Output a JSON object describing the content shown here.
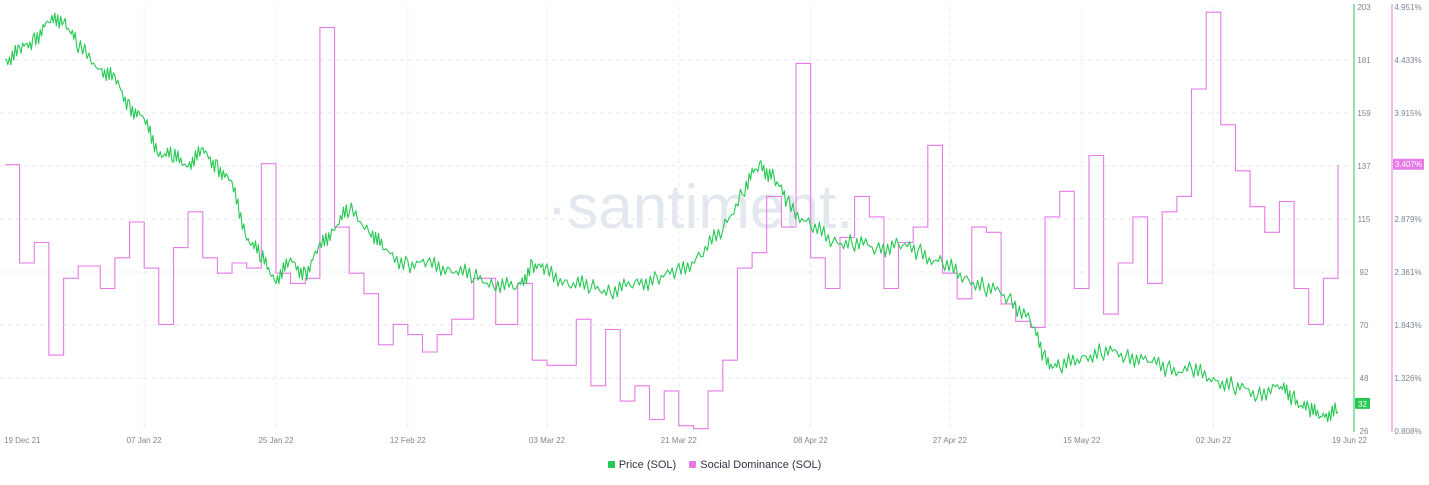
{
  "watermark": "·santiment.",
  "colors": {
    "price": "#26c953",
    "dominance": "#e67ae6",
    "grid": "#e6e9ee",
    "text": "#7d8590"
  },
  "chart_data": {
    "type": "line",
    "x_ticks": [
      "19 Dec 21",
      "07 Jan 22",
      "25 Jan 22",
      "12 Feb 22",
      "03 Mar 22",
      "21 Mar 22",
      "08 Apr 22",
      "27 Apr 22",
      "15 May 22",
      "02 Jun 22",
      "19 Jun 22"
    ],
    "y_left_ticks": [
      "203",
      "181",
      "159",
      "137",
      "115",
      "92",
      "70",
      "48",
      "26"
    ],
    "y_left_range": [
      26,
      203
    ],
    "y_right_ticks": [
      "4.951%",
      "4.433%",
      "3.915%",
      "3.407%",
      "2.879%",
      "2.361%",
      "1.843%",
      "1.326%",
      "0.808%"
    ],
    "y_right_range": [
      0.808,
      4.951
    ],
    "grid": true,
    "legend_position": "bottom-center",
    "series": [
      {
        "name": "Price (SOL)",
        "axis": "left",
        "color": "#26c953",
        "last_value_badge": "32",
        "x": [
          "2021-12-19",
          "2021-12-21",
          "2021-12-23",
          "2021-12-25",
          "2021-12-27",
          "2021-12-29",
          "2022-01-01",
          "2022-01-03",
          "2022-01-05",
          "2022-01-07",
          "2022-01-09",
          "2022-01-11",
          "2022-01-13",
          "2022-01-15",
          "2022-01-17",
          "2022-01-19",
          "2022-01-21",
          "2022-01-23",
          "2022-01-25",
          "2022-01-27",
          "2022-01-29",
          "2022-01-31",
          "2022-02-02",
          "2022-02-04",
          "2022-02-07",
          "2022-02-09",
          "2022-02-12",
          "2022-02-15",
          "2022-02-18",
          "2022-02-21",
          "2022-02-24",
          "2022-02-27",
          "2022-03-01",
          "2022-03-03",
          "2022-03-06",
          "2022-03-09",
          "2022-03-12",
          "2022-03-15",
          "2022-03-18",
          "2022-03-21",
          "2022-03-24",
          "2022-03-27",
          "2022-03-30",
          "2022-04-01",
          "2022-04-03",
          "2022-04-05",
          "2022-04-08",
          "2022-04-11",
          "2022-04-14",
          "2022-04-17",
          "2022-04-20",
          "2022-04-23",
          "2022-04-26",
          "2022-04-29",
          "2022-05-02",
          "2022-05-05",
          "2022-05-08",
          "2022-05-10",
          "2022-05-12",
          "2022-05-15",
          "2022-05-18",
          "2022-05-21",
          "2022-05-24",
          "2022-05-27",
          "2022-05-30",
          "2022-06-02",
          "2022-06-05",
          "2022-06-08",
          "2022-06-11",
          "2022-06-13",
          "2022-06-15",
          "2022-06-17",
          "2022-06-19"
        ],
        "y": [
          181,
          184,
          190,
          196,
          199,
          186,
          178,
          172,
          162,
          155,
          143,
          140,
          138,
          142,
          137,
          128,
          108,
          98,
          90,
          96,
          92,
          102,
          112,
          118,
          110,
          100,
          96,
          95,
          94,
          90,
          88,
          85,
          96,
          92,
          88,
          86,
          85,
          87,
          90,
          92,
          100,
          110,
          128,
          137,
          132,
          120,
          112,
          105,
          105,
          102,
          104,
          100,
          96,
          90,
          86,
          82,
          72,
          56,
          52,
          57,
          59,
          58,
          55,
          52,
          51,
          48,
          44,
          42,
          44,
          40,
          34,
          33,
          34
        ]
      },
      {
        "name": "Social Dominance (SOL)",
        "axis": "right",
        "color": "#e67ae6",
        "last_value_badge": "3.407%",
        "x": [
          "2021-12-19",
          "2021-12-21",
          "2021-12-23",
          "2021-12-25",
          "2021-12-27",
          "2021-12-29",
          "2022-01-01",
          "2022-01-03",
          "2022-01-05",
          "2022-01-07",
          "2022-01-09",
          "2022-01-11",
          "2022-01-13",
          "2022-01-15",
          "2022-01-17",
          "2022-01-19",
          "2022-01-21",
          "2022-01-23",
          "2022-01-25",
          "2022-01-27",
          "2022-01-29",
          "2022-01-31",
          "2022-02-02",
          "2022-02-04",
          "2022-02-06",
          "2022-02-08",
          "2022-02-10",
          "2022-02-12",
          "2022-02-14",
          "2022-02-16",
          "2022-02-18",
          "2022-02-21",
          "2022-02-24",
          "2022-02-27",
          "2022-03-01",
          "2022-03-03",
          "2022-03-05",
          "2022-03-07",
          "2022-03-09",
          "2022-03-11",
          "2022-03-13",
          "2022-03-15",
          "2022-03-17",
          "2022-03-19",
          "2022-03-21",
          "2022-03-23",
          "2022-03-25",
          "2022-03-27",
          "2022-03-29",
          "2022-03-31",
          "2022-04-02",
          "2022-04-04",
          "2022-04-06",
          "2022-04-08",
          "2022-04-10",
          "2022-04-12",
          "2022-04-14",
          "2022-04-16",
          "2022-04-18",
          "2022-04-20",
          "2022-04-22",
          "2022-04-24",
          "2022-04-26",
          "2022-04-28",
          "2022-04-30",
          "2022-05-02",
          "2022-05-04",
          "2022-05-06",
          "2022-05-08",
          "2022-05-10",
          "2022-05-12",
          "2022-05-14",
          "2022-05-16",
          "2022-05-18",
          "2022-05-20",
          "2022-05-22",
          "2022-05-24",
          "2022-05-26",
          "2022-05-28",
          "2022-05-30",
          "2022-06-01",
          "2022-06-03",
          "2022-06-05",
          "2022-06-07",
          "2022-06-09",
          "2022-06-11",
          "2022-06-13",
          "2022-06-15",
          "2022-06-17",
          "2022-06-19"
        ],
        "y": [
          3.41,
          2.45,
          2.65,
          1.55,
          2.3,
          2.42,
          2.2,
          2.5,
          2.85,
          2.4,
          1.85,
          2.6,
          2.95,
          2.5,
          2.35,
          2.45,
          2.4,
          3.42,
          2.35,
          2.25,
          2.3,
          4.75,
          2.8,
          2.35,
          2.15,
          1.65,
          1.85,
          1.75,
          1.58,
          1.75,
          1.9,
          2.3,
          1.85,
          2.25,
          1.5,
          1.45,
          1.45,
          1.9,
          1.25,
          1.8,
          1.1,
          1.25,
          0.92,
          1.2,
          0.86,
          0.83,
          1.2,
          1.5,
          2.4,
          2.55,
          3.1,
          2.8,
          4.4,
          2.5,
          2.2,
          2.7,
          3.1,
          2.9,
          2.2,
          2.65,
          2.8,
          3.6,
          2.35,
          2.1,
          2.8,
          2.75,
          2.05,
          1.88,
          1.82,
          2.9,
          3.15,
          2.2,
          3.5,
          1.95,
          2.45,
          2.9,
          2.25,
          2.95,
          3.1,
          4.15,
          4.9,
          3.8,
          3.35,
          3.0,
          2.75,
          3.05,
          2.2,
          1.85,
          2.3,
          3.41
        ]
      }
    ]
  }
}
